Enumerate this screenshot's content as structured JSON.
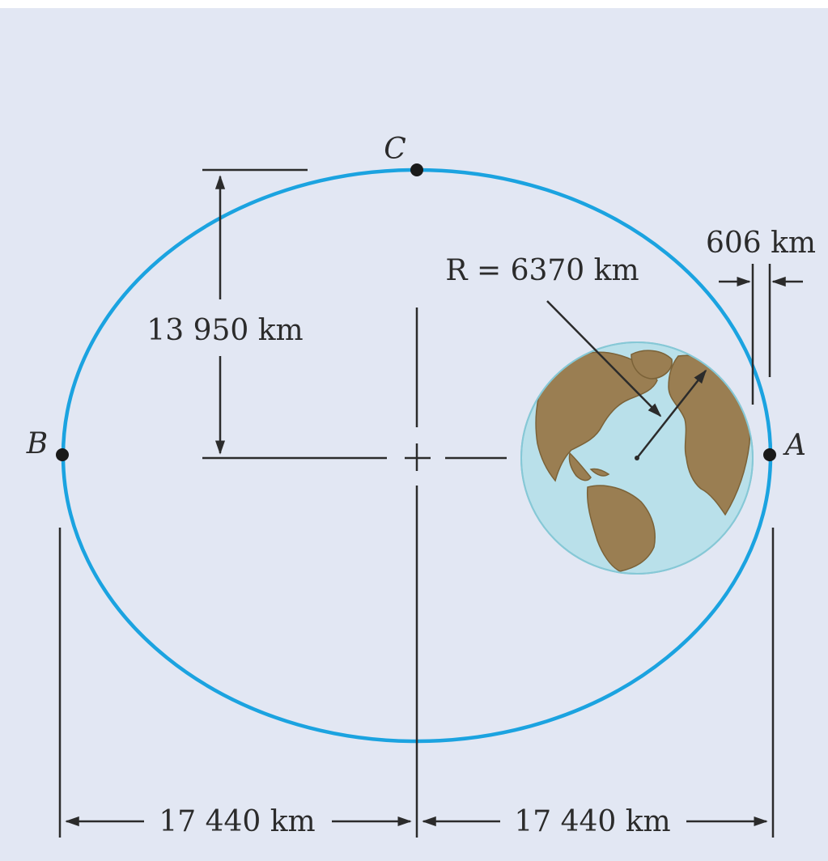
{
  "colors": {
    "background": "#e2e7f3",
    "orbit": "#1ba3e0",
    "ocean": "#b9e0ea",
    "land": "#9a7e52",
    "line": "#2b2b2b"
  },
  "points": {
    "A": "A",
    "B": "B",
    "C": "C"
  },
  "dimensions": {
    "semi_minor": "13 950 km",
    "earth_radius": "R = 6370 km",
    "perigee_altitude": "606 km",
    "left_half_axis": "17 440 km",
    "right_half_axis": "17 440 km"
  },
  "icons": {
    "earth": "earth-globe-icon"
  }
}
